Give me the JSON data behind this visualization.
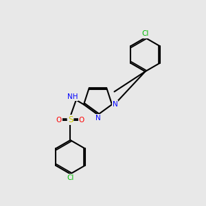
{
  "background_color": "#e8e8e8",
  "figure_size": [
    3.0,
    3.0
  ],
  "dpi": 100,
  "bond_color": "#000000",
  "bond_lw": 1.5,
  "colors": {
    "N": "#0000ff",
    "S": "#cccc00",
    "O": "#ff0000",
    "Cl": "#00bb00",
    "H": "#888888",
    "C": "#000000"
  },
  "font_size": 7.5,
  "font_size_small": 6.5
}
